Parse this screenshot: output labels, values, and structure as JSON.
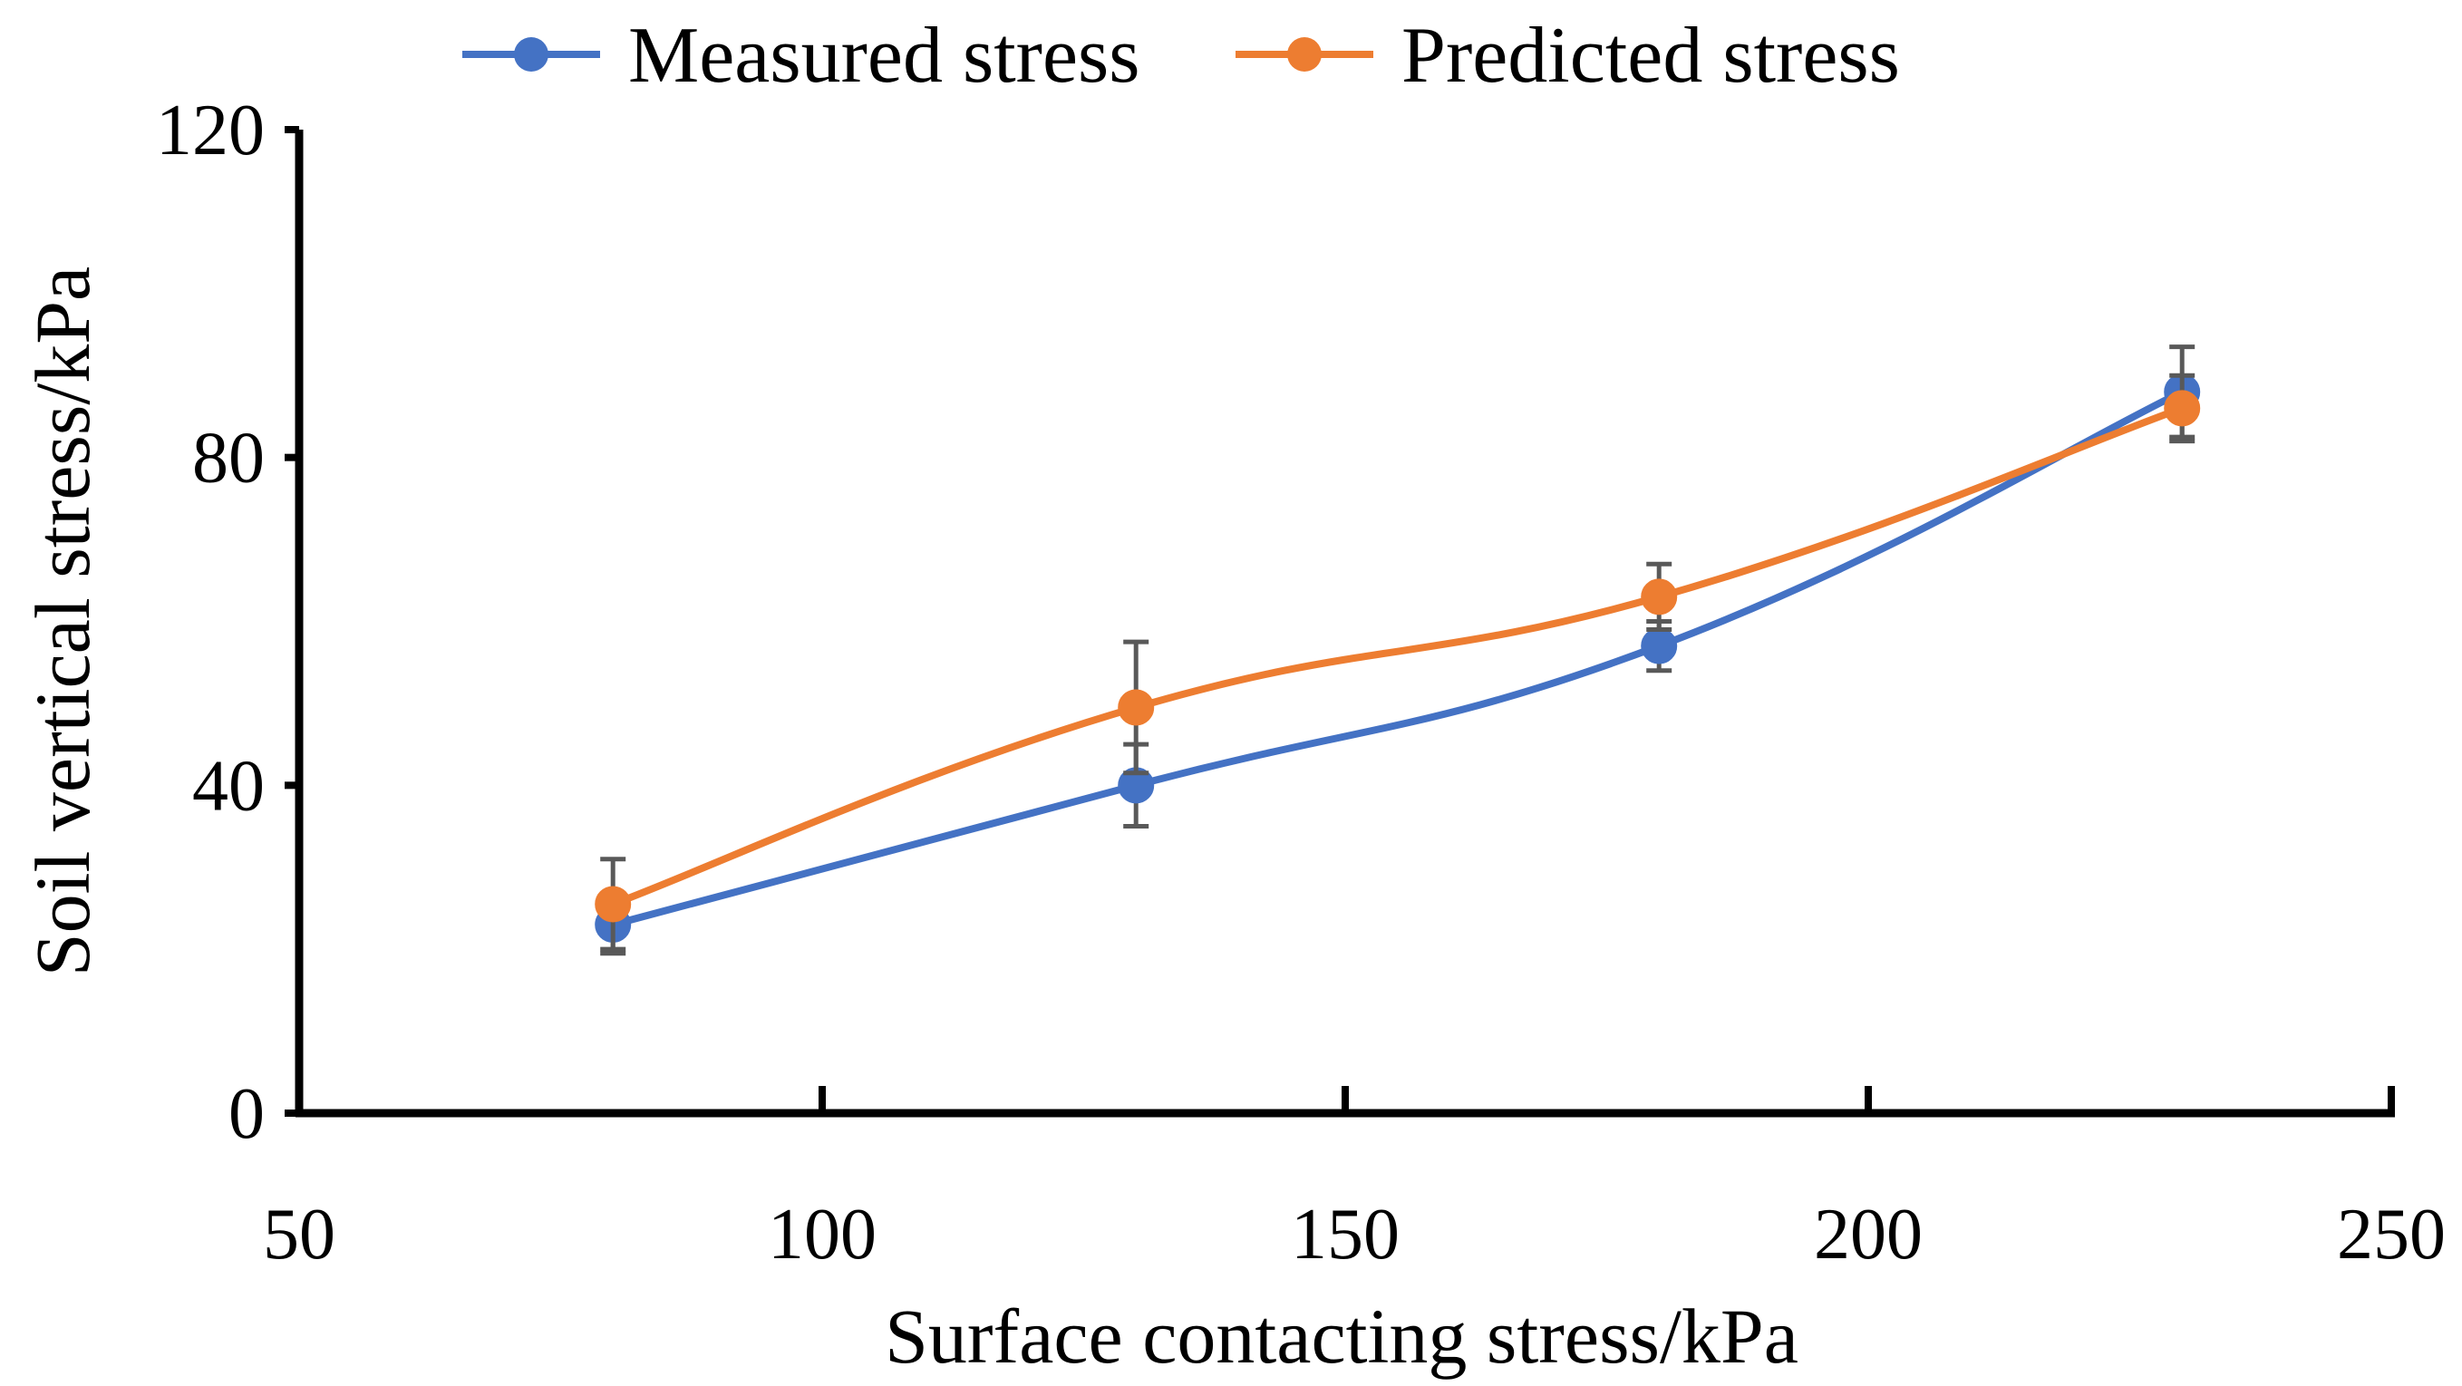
{
  "chart_data": {
    "type": "line",
    "title": "",
    "xlabel": "Surface contacting stress/kPa",
    "ylabel": "Soil vertical stress/kPa",
    "xlim": [
      50,
      250
    ],
    "ylim": [
      0,
      120
    ],
    "x_ticks": [
      50,
      100,
      150,
      200,
      250
    ],
    "y_ticks": [
      0,
      40,
      80,
      120
    ],
    "x_tick_labels": [
      "50",
      "100",
      "150",
      "200",
      "250"
    ],
    "y_tick_labels": [
      "0",
      "40",
      "80",
      "120"
    ],
    "grid": false,
    "legend_position": "top-center",
    "series": [
      {
        "name": "Measured stress",
        "color": "#4472C4",
        "x": [
          80,
          130,
          180,
          230
        ],
        "y": [
          23,
          40,
          57,
          88
        ],
        "error": [
          3.5,
          5,
          3,
          5.5
        ]
      },
      {
        "name": "Predicted stress",
        "color": "#ED7D31",
        "x": [
          80,
          130,
          180,
          230
        ],
        "y": [
          25.5,
          49.5,
          63,
          86
        ],
        "error": [
          5.5,
          8,
          4,
          4
        ]
      }
    ],
    "error_bar_color": "#595959"
  }
}
